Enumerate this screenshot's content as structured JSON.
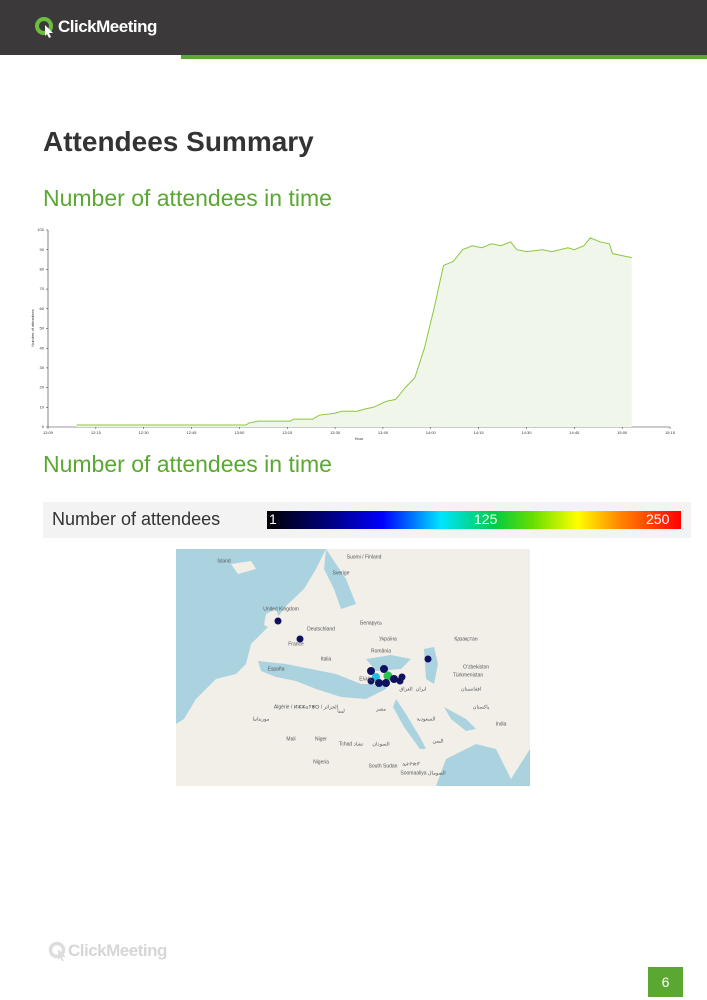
{
  "header": {
    "logo": "ClickMeeting"
  },
  "title": "Attendees Summary",
  "sections": [
    "Number of attendees in time",
    "Number of attendees in time"
  ],
  "chart_data": {
    "type": "area",
    "ylabel": "Number of attendees",
    "xlabel": "Hour",
    "color": "#8cc63f",
    "fill": "#f0f7ea",
    "x": [
      9,
      62,
      63,
      66,
      76,
      77,
      83,
      85,
      90,
      92,
      97,
      99,
      102,
      106,
      109,
      112,
      115,
      118,
      121,
      124,
      127,
      130,
      133,
      136,
      139,
      142,
      145,
      147,
      150,
      155,
      158,
      163,
      165,
      168,
      170,
      173,
      176,
      177,
      180,
      183
    ],
    "values": [
      1,
      1,
      2,
      3,
      3,
      4,
      4,
      6,
      7,
      8,
      8,
      9,
      10,
      13,
      14,
      20,
      25,
      40,
      60,
      82,
      84,
      90,
      92,
      91,
      93,
      92,
      94,
      90,
      89,
      90,
      89,
      91,
      90,
      92,
      96,
      94,
      93,
      88,
      87,
      86
    ],
    "xlim": [
      0,
      195
    ],
    "xticks": [
      {
        "value": 0,
        "label": "12:00"
      },
      {
        "value": 15,
        "label": "12:15"
      },
      {
        "value": 30,
        "label": "12:30"
      },
      {
        "value": 45,
        "label": "12:45"
      },
      {
        "value": 60,
        "label": "13:00"
      },
      {
        "value": 75,
        "label": "13:15"
      },
      {
        "value": 90,
        "label": "13:30"
      },
      {
        "value": 105,
        "label": "13:45"
      },
      {
        "value": 120,
        "label": "14:00"
      },
      {
        "value": 135,
        "label": "14:15"
      },
      {
        "value": 150,
        "label": "14:30"
      },
      {
        "value": 165,
        "label": "14:45"
      },
      {
        "value": 180,
        "label": "15:00"
      },
      {
        "value": 195,
        "label": "15:15"
      }
    ],
    "ylim": [
      0,
      100
    ],
    "yticks": [
      0,
      10,
      20,
      30,
      40,
      50,
      60,
      70,
      80,
      90,
      100
    ]
  },
  "legend": {
    "title": "Number of attendees",
    "min": 1,
    "mid": 125,
    "max": 250
  },
  "map": {
    "labels": [
      "Ísland",
      "Suomi / Finland",
      "Sverige",
      "United Kingdom",
      "Deutschland",
      "Беларусь",
      "Україна",
      "Қазақстан",
      "France",
      "România",
      "Italia",
      "España",
      "Oʻzbekiston",
      "Türkmenistan",
      "Ελλάς",
      "ایران",
      "العراق",
      "افغانستان",
      "پاکستان",
      "Algérie / ⵍⵣⵣⴰⵢⴻⵔ / الجزائر",
      "ليبيا",
      "مصر",
      "السعودية",
      "موريتانيا",
      "Mali",
      "Niger",
      "Tchad تشاد",
      "السودان",
      "اليمن",
      "India",
      "Nigeria",
      "South Sudan",
      "ኢትዮጵያ",
      "Soomaaliya الصومال"
    ]
  },
  "footer": {
    "logo": "ClickMeeting",
    "page": 6
  }
}
